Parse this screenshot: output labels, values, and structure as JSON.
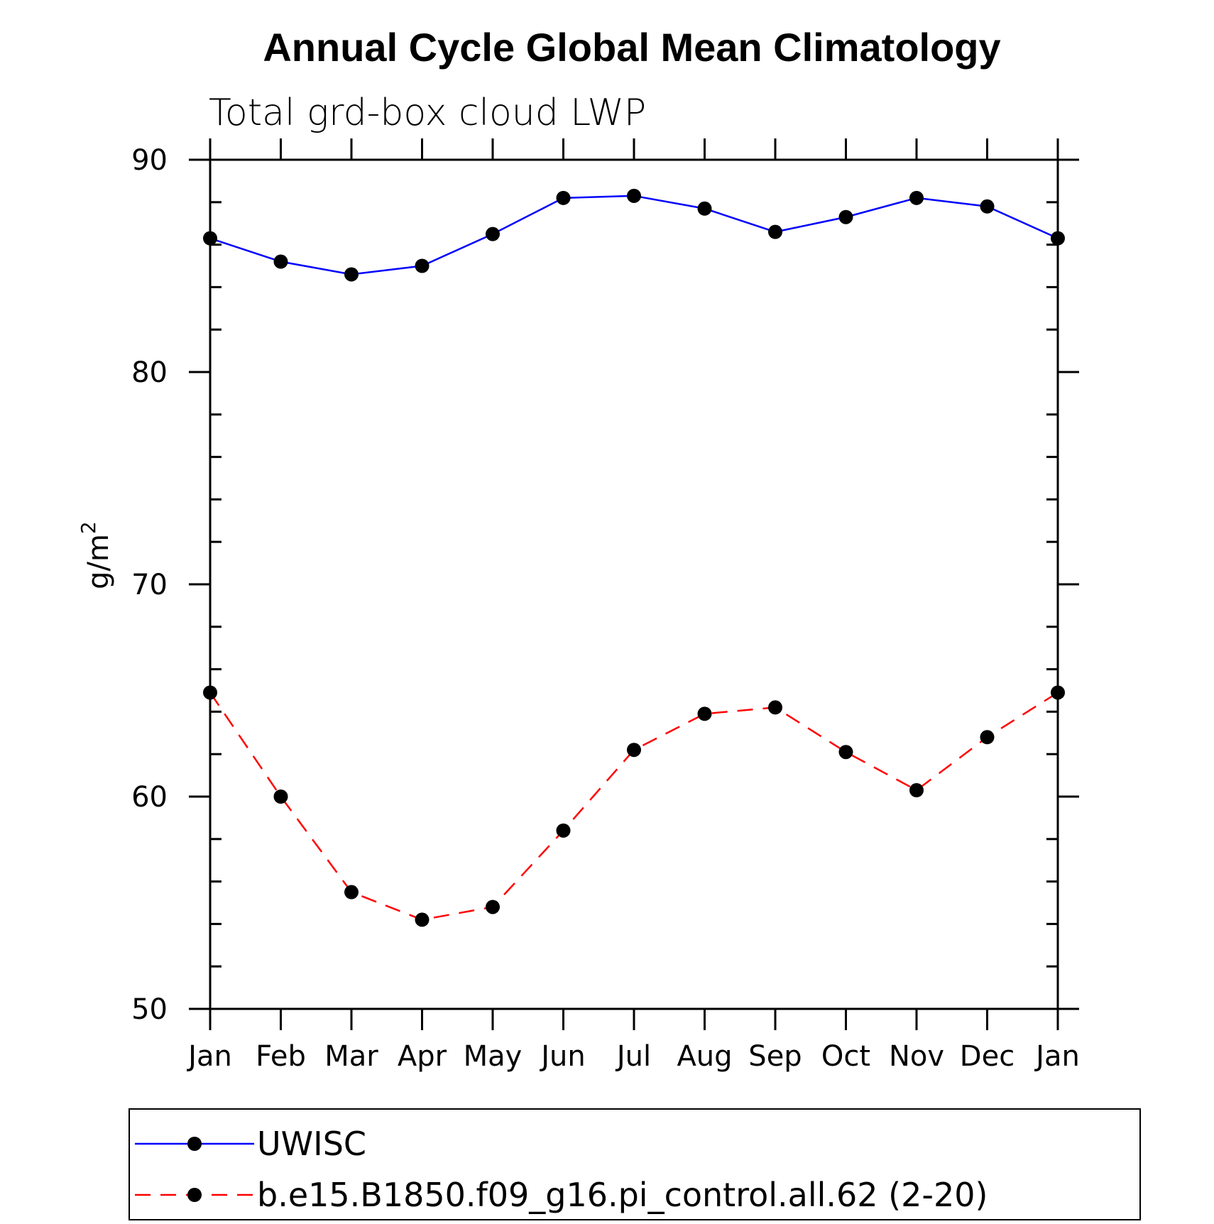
{
  "chart_data": {
    "type": "line",
    "title": "Annual Cycle Global Mean Climatology",
    "subtitle": "Total grd-box cloud LWP",
    "ylabel": "g/m",
    "ylabel_sup": "2",
    "xlabel": "",
    "categories": [
      "Jan",
      "Feb",
      "Mar",
      "Apr",
      "May",
      "Jun",
      "Jul",
      "Aug",
      "Sep",
      "Oct",
      "Nov",
      "Dec",
      "Jan"
    ],
    "ylim": [
      50,
      90
    ],
    "yticks": [
      50,
      60,
      70,
      80,
      90
    ],
    "grid": false,
    "legend_position": "bottom",
    "series": [
      {
        "name": "UWISC",
        "color": "#0000ff",
        "dash": "solid",
        "marker": "filled-circle",
        "values": [
          86.3,
          85.2,
          84.6,
          85.0,
          86.5,
          88.2,
          88.3,
          87.7,
          86.6,
          87.3,
          88.2,
          87.8,
          86.3
        ]
      },
      {
        "name": "b.e15.B1850.f09_g16.pi_control.all.62 (2-20)",
        "color": "#ff0000",
        "dash": "dashed",
        "marker": "filled-circle",
        "values": [
          64.9,
          60.0,
          55.5,
          54.2,
          54.8,
          58.4,
          62.2,
          63.9,
          64.2,
          62.1,
          60.3,
          62.8,
          64.9
        ]
      }
    ]
  }
}
